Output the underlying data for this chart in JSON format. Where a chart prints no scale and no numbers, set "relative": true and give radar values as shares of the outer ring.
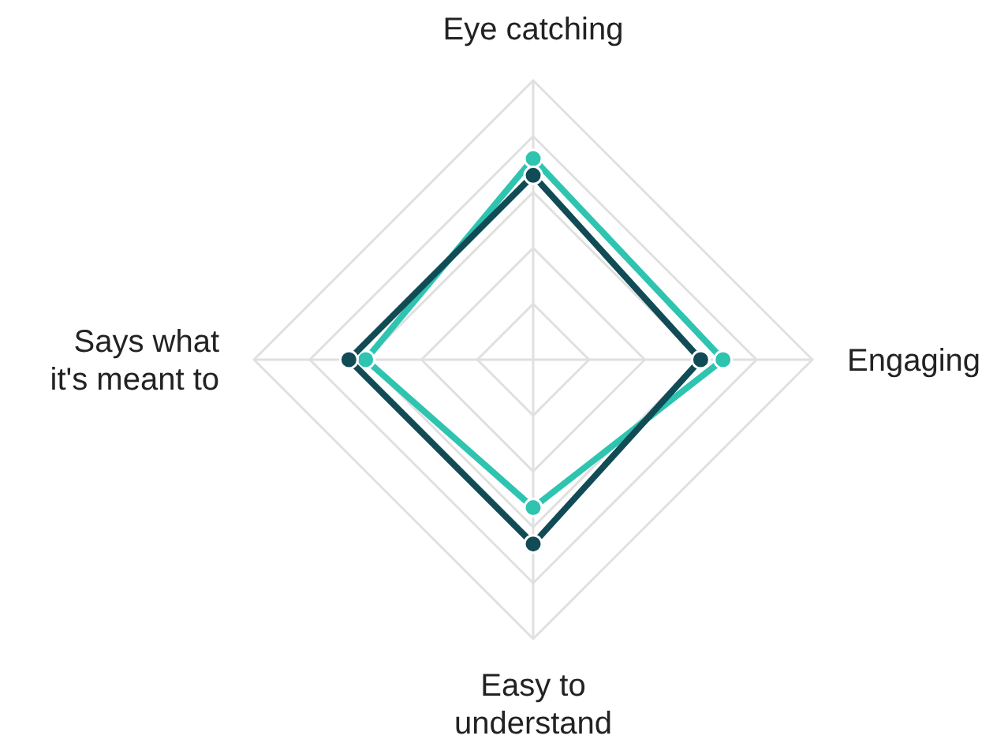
{
  "chart_data": {
    "type": "radar",
    "relative": true,
    "grid": true,
    "marker": "circle",
    "categories": [
      "Eye catching",
      "Engaging",
      "Easy to understand",
      "Says what it's meant to"
    ],
    "series": [
      {
        "color": "#2ec4b0",
        "values": [
          0.72,
          0.68,
          0.53,
          0.6
        ]
      },
      {
        "color": "#114b55",
        "values": [
          0.66,
          0.6,
          0.66,
          0.66
        ]
      }
    ]
  }
}
